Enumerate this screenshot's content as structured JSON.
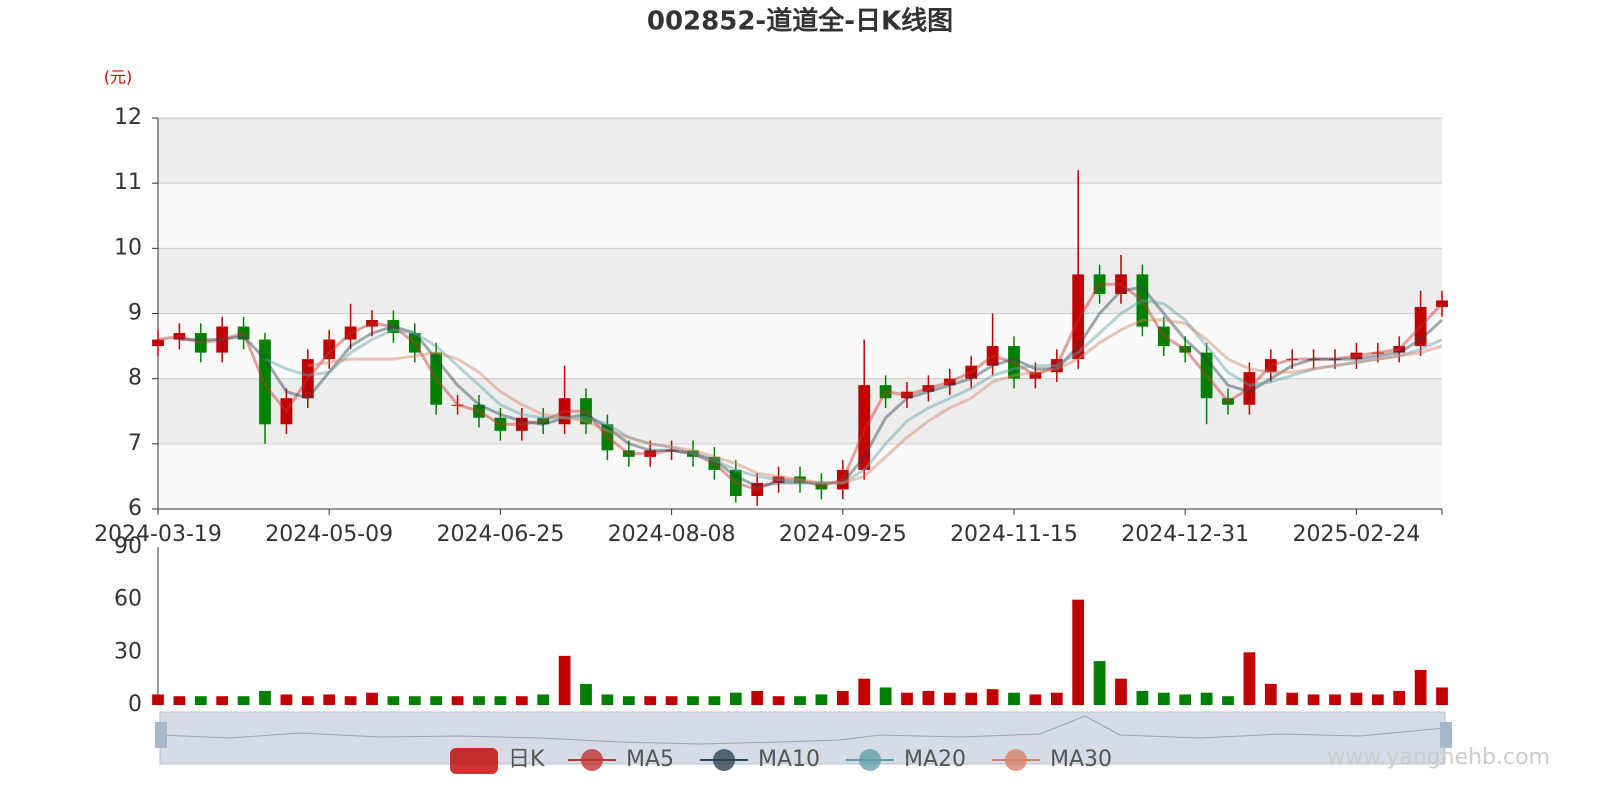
{
  "chart_data": {
    "type": "candlestick",
    "title": "002852-道道全-日K线图",
    "unit_label": "(元)",
    "watermark": "www.yanghehb.com",
    "candle_name": "日K",
    "up_color": "#c00000",
    "down_color": "#008000",
    "categories": [
      "2024-03-19",
      null,
      null,
      null,
      null,
      null,
      null,
      null,
      "2024-05-09",
      null,
      null,
      null,
      null,
      null,
      null,
      null,
      "2024-06-25",
      null,
      null,
      null,
      null,
      null,
      null,
      null,
      "2024-08-08",
      null,
      null,
      null,
      null,
      null,
      null,
      null,
      "2024-09-25",
      null,
      null,
      null,
      null,
      null,
      null,
      null,
      "2024-11-15",
      null,
      null,
      null,
      null,
      null,
      null,
      null,
      "2024-12-31",
      null,
      null,
      null,
      null,
      null,
      null,
      null,
      "2025-02-24",
      null,
      null,
      null,
      null
    ],
    "open": [
      8.5,
      8.6,
      8.7,
      8.4,
      8.8,
      8.6,
      7.3,
      7.7,
      8.3,
      8.6,
      8.8,
      8.9,
      8.7,
      8.4,
      7.6,
      7.6,
      7.4,
      7.2,
      7.4,
      7.3,
      7.7,
      7.3,
      6.9,
      6.8,
      6.9,
      6.9,
      6.8,
      6.6,
      6.2,
      6.4,
      6.5,
      6.4,
      6.3,
      6.6,
      7.9,
      7.7,
      7.8,
      7.9,
      8.0,
      8.2,
      8.5,
      8.0,
      8.1,
      8.3,
      9.6,
      9.3,
      9.6,
      8.8,
      8.5,
      8.4,
      7.7,
      7.6,
      8.1,
      8.3,
      8.3,
      8.3,
      8.3,
      8.4,
      8.4,
      8.5,
      9.1
    ],
    "close": [
      8.6,
      8.7,
      8.4,
      8.8,
      8.6,
      7.3,
      7.7,
      8.3,
      8.6,
      8.8,
      8.9,
      8.7,
      8.4,
      7.6,
      7.6,
      7.4,
      7.2,
      7.4,
      7.3,
      7.7,
      7.3,
      6.9,
      6.8,
      6.9,
      6.9,
      6.8,
      6.6,
      6.2,
      6.4,
      6.5,
      6.4,
      6.3,
      6.6,
      7.9,
      7.7,
      7.8,
      7.9,
      8.0,
      8.2,
      8.5,
      8.0,
      8.1,
      8.3,
      9.6,
      9.3,
      9.6,
      8.8,
      8.5,
      8.4,
      7.7,
      7.6,
      8.1,
      8.3,
      8.3,
      8.3,
      8.3,
      8.4,
      8.4,
      8.5,
      9.1,
      9.2
    ],
    "low": [
      8.35,
      8.45,
      8.25,
      8.25,
      8.45,
      7.0,
      7.15,
      7.55,
      8.15,
      8.45,
      8.65,
      8.55,
      8.25,
      7.45,
      7.45,
      7.25,
      7.05,
      7.05,
      7.15,
      7.15,
      7.15,
      6.75,
      6.65,
      6.65,
      6.75,
      6.65,
      6.45,
      6.1,
      6.05,
      6.25,
      6.25,
      6.15,
      6.15,
      6.45,
      7.55,
      7.55,
      7.65,
      7.75,
      7.85,
      8.05,
      7.85,
      7.85,
      7.95,
      8.15,
      9.15,
      9.15,
      8.65,
      8.35,
      8.25,
      7.3,
      7.45,
      7.45,
      7.95,
      8.15,
      8.15,
      8.15,
      8.15,
      8.25,
      8.25,
      8.35,
      8.95
    ],
    "high": [
      8.75,
      8.85,
      8.85,
      8.95,
      8.95,
      8.7,
      7.85,
      8.45,
      8.75,
      9.15,
      9.05,
      9.05,
      8.85,
      8.55,
      7.75,
      7.75,
      7.55,
      7.55,
      7.55,
      8.2,
      7.85,
      7.45,
      7.05,
      7.05,
      7.05,
      7.05,
      6.95,
      6.75,
      6.55,
      6.65,
      6.65,
      6.55,
      6.75,
      8.6,
      8.05,
      7.95,
      8.05,
      8.15,
      8.35,
      9.0,
      8.65,
      8.25,
      8.45,
      11.2,
      9.75,
      9.9,
      9.75,
      8.95,
      8.65,
      8.55,
      7.85,
      8.25,
      8.45,
      8.45,
      8.45,
      8.45,
      8.55,
      8.55,
      8.65,
      9.35,
      9.35
    ],
    "series": [
      {
        "name": "MA5",
        "color": "#c23531",
        "values": [
          8.6,
          8.65,
          8.55,
          8.6,
          8.7,
          7.9,
          7.5,
          8.0,
          8.4,
          8.7,
          8.85,
          8.8,
          8.55,
          8.0,
          7.6,
          7.5,
          7.3,
          7.3,
          7.35,
          7.5,
          7.5,
          7.1,
          6.85,
          6.85,
          6.9,
          6.85,
          6.7,
          6.4,
          6.3,
          6.45,
          6.45,
          6.35,
          6.45,
          7.2,
          7.8,
          7.75,
          7.85,
          7.95,
          8.1,
          8.35,
          8.25,
          8.05,
          8.2,
          8.9,
          9.45,
          9.45,
          9.2,
          8.65,
          8.45,
          8.05,
          7.65,
          7.85,
          8.2,
          8.3,
          8.3,
          8.3,
          8.35,
          8.4,
          8.45,
          8.8,
          9.15
        ]
      },
      {
        "name": "MA10",
        "color": "#2f4554",
        "values": [
          null,
          8.6,
          8.6,
          8.6,
          8.65,
          8.3,
          7.8,
          7.7,
          8.1,
          8.5,
          8.7,
          8.8,
          8.7,
          8.3,
          7.9,
          7.6,
          7.45,
          7.35,
          7.3,
          7.4,
          7.45,
          7.25,
          7.0,
          6.9,
          6.9,
          6.85,
          6.75,
          6.5,
          6.35,
          6.4,
          6.4,
          6.4,
          6.4,
          6.8,
          7.4,
          7.7,
          7.8,
          7.9,
          8.0,
          8.2,
          8.3,
          8.15,
          8.15,
          8.5,
          9.0,
          9.35,
          9.4,
          9.0,
          8.6,
          8.3,
          7.9,
          7.8,
          8.0,
          8.2,
          8.3,
          8.3,
          8.3,
          8.35,
          8.4,
          8.6,
          8.9
        ]
      },
      {
        "name": "MA20",
        "color": "#61a0a8",
        "values": [
          null,
          null,
          null,
          null,
          null,
          8.3,
          8.15,
          8.05,
          8.1,
          8.4,
          8.6,
          8.75,
          8.7,
          8.5,
          8.2,
          7.9,
          7.6,
          7.45,
          7.4,
          7.4,
          7.4,
          7.3,
          7.1,
          7.0,
          6.95,
          6.85,
          6.75,
          6.6,
          6.5,
          6.45,
          6.4,
          6.4,
          6.4,
          6.6,
          7.0,
          7.35,
          7.55,
          7.7,
          7.85,
          8.05,
          8.15,
          8.2,
          8.2,
          8.4,
          8.7,
          9.0,
          9.2,
          9.15,
          8.9,
          8.5,
          8.1,
          7.9,
          7.95,
          8.05,
          8.15,
          8.2,
          8.25,
          8.3,
          8.35,
          8.45,
          8.6
        ]
      },
      {
        "name": "MA30",
        "color": "#d48265",
        "values": [
          null,
          null,
          null,
          null,
          null,
          null,
          null,
          8.2,
          8.25,
          8.3,
          8.3,
          8.3,
          8.35,
          8.4,
          8.3,
          8.1,
          7.8,
          7.6,
          7.45,
          7.4,
          7.35,
          7.2,
          7.1,
          7.0,
          6.95,
          6.9,
          6.8,
          6.7,
          6.55,
          6.5,
          6.45,
          6.4,
          6.4,
          6.5,
          6.8,
          7.1,
          7.35,
          7.55,
          7.7,
          7.95,
          8.05,
          8.1,
          8.15,
          8.3,
          8.55,
          8.75,
          8.9,
          8.9,
          8.85,
          8.6,
          8.3,
          8.15,
          8.1,
          8.1,
          8.15,
          8.2,
          8.25,
          8.3,
          8.35,
          8.4,
          8.5
        ]
      }
    ],
    "ylim": [
      6,
      12
    ],
    "yticks": [
      6,
      7,
      8,
      9,
      10,
      11,
      12
    ],
    "volume": {
      "values": [
        6,
        5,
        5,
        5,
        5,
        8,
        6,
        5,
        6,
        5,
        7,
        5,
        5,
        5,
        5,
        5,
        5,
        5,
        6,
        28,
        12,
        6,
        5,
        5,
        5,
        5,
        5,
        7,
        8,
        5,
        5,
        6,
        8,
        15,
        10,
        7,
        8,
        7,
        7,
        9,
        7,
        6,
        7,
        60,
        25,
        15,
        8,
        7,
        6,
        7,
        5,
        30,
        12,
        7,
        6,
        6,
        7,
        6,
        8,
        20,
        10
      ],
      "ylim": [
        0,
        90
      ],
      "yticks": [
        0,
        30,
        60,
        90
      ]
    }
  }
}
